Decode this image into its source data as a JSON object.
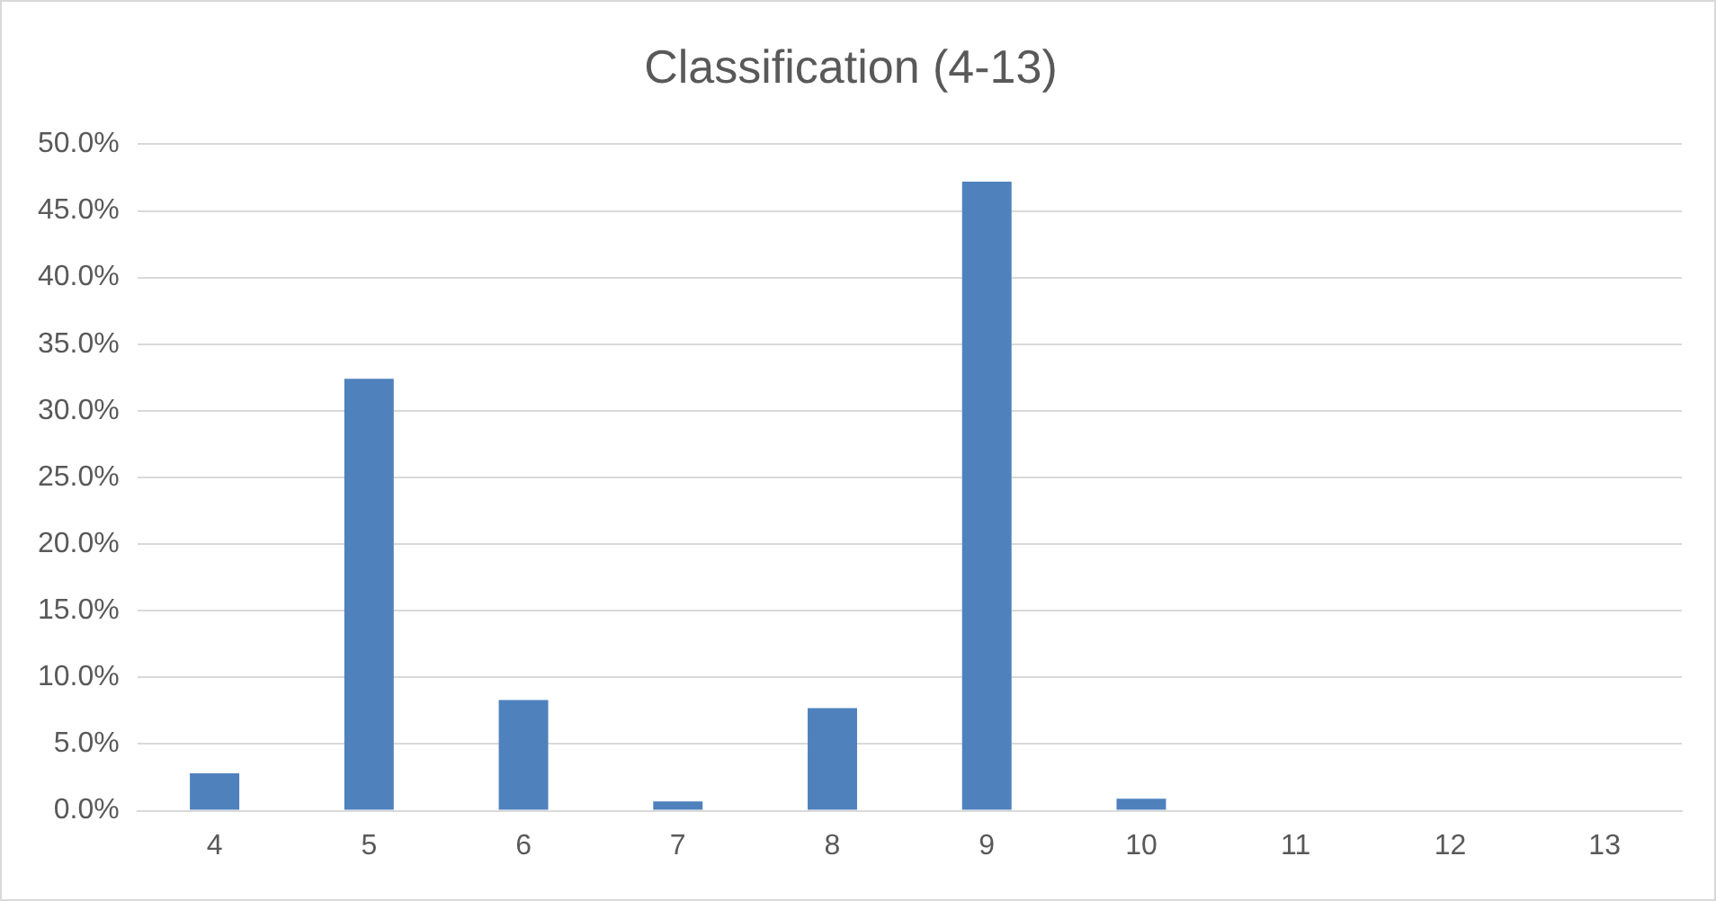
{
  "chart_data": {
    "type": "bar",
    "title": "Classification (4-13)",
    "categories": [
      "4",
      "5",
      "6",
      "7",
      "8",
      "9",
      "10",
      "11",
      "12",
      "13"
    ],
    "values": [
      2.8,
      32.4,
      8.3,
      0.7,
      7.7,
      47.2,
      0.9,
      0,
      0,
      0
    ],
    "color": "#4f81bd",
    "ylim": [
      0,
      50
    ],
    "yticks": [
      {
        "value": 0,
        "label": "0.0%"
      },
      {
        "value": 5,
        "label": "5.0%"
      },
      {
        "value": 10,
        "label": "10.0%"
      },
      {
        "value": 15,
        "label": "15.0%"
      },
      {
        "value": 20,
        "label": "20.0%"
      },
      {
        "value": 25,
        "label": "25.0%"
      },
      {
        "value": 30,
        "label": "30.0%"
      },
      {
        "value": 35,
        "label": "35.0%"
      },
      {
        "value": 40,
        "label": "40.0%"
      },
      {
        "value": 45,
        "label": "45.0%"
      },
      {
        "value": 50,
        "label": "50.0%"
      }
    ],
    "grid": "y",
    "legend": false
  }
}
